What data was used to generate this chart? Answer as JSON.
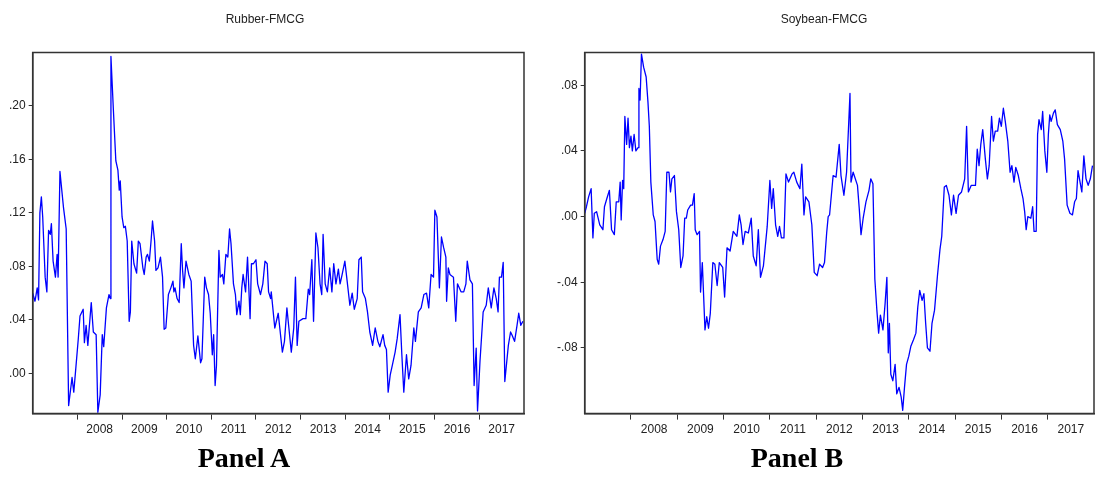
{
  "chart_data": [
    {
      "type": "line",
      "title": "Rubber-FMCG",
      "annotations": [
        "Panel A"
      ],
      "legend": false,
      "marker": "none",
      "line_style": "solid",
      "xlim": [
        "2007-01-01",
        "2018-01-01"
      ],
      "xticks": [
        {
          "value": "2008-01-01",
          "label": null
        },
        {
          "value": "2008-07-02",
          "label": "2008"
        },
        {
          "value": "2009-01-01",
          "label": null
        },
        {
          "value": "2009-07-02",
          "label": "2009"
        },
        {
          "value": "2010-01-01",
          "label": null
        },
        {
          "value": "2010-07-02",
          "label": "2010"
        },
        {
          "value": "2011-01-01",
          "label": null
        },
        {
          "value": "2011-07-02",
          "label": "2011"
        },
        {
          "value": "2012-01-01",
          "label": null
        },
        {
          "value": "2012-07-02",
          "label": "2012"
        },
        {
          "value": "2013-01-01",
          "label": null
        },
        {
          "value": "2013-07-02",
          "label": "2013"
        },
        {
          "value": "2014-01-01",
          "label": null
        },
        {
          "value": "2014-07-02",
          "label": "2014"
        },
        {
          "value": "2015-01-01",
          "label": null
        },
        {
          "value": "2015-07-02",
          "label": "2015"
        },
        {
          "value": "2016-01-01",
          "label": null
        },
        {
          "value": "2016-07-02",
          "label": "2016"
        },
        {
          "value": "2017-01-01",
          "label": null
        },
        {
          "value": "2017-07-02",
          "label": "2017"
        }
      ],
      "ylim": [
        -0.03,
        0.24
      ],
      "yticks": [
        {
          "value": 0,
          "label": ".00"
        },
        {
          "value": 0.04,
          "label": ".04"
        },
        {
          "value": 0.08,
          "label": ".08"
        },
        {
          "value": 0.12,
          "label": ".12"
        },
        {
          "value": 0.16,
          "label": ".16"
        },
        {
          "value": 0.2,
          "label": ".20"
        }
      ],
      "series": [
        {
          "color": "#0000ff",
          "x": [
            "2007-01-01",
            "2007-01-20",
            "2007-02-07",
            "2007-02-18",
            "2007-03-01",
            "2007-03-13",
            "2007-03-24",
            "2007-04-13",
            "2007-04-27",
            "2007-05-11",
            "2007-05-25",
            "2007-06-03",
            "2007-06-17",
            "2007-07-06",
            "2007-07-20",
            "2007-07-28",
            "2007-08-12",
            "2007-09-10",
            "2007-10-02",
            "2007-10-22",
            "2007-11-19",
            "2007-12-03",
            "2007-12-17",
            "2008-01-09",
            "2008-01-23",
            "2008-02-18",
            "2008-02-28",
            "2008-03-13",
            "2008-03-27",
            "2008-04-24",
            "2008-05-11",
            "2008-06-03",
            "2008-06-17",
            "2008-07-06",
            "2008-07-23",
            "2008-08-04",
            "2008-08-26",
            "2008-09-16",
            "2008-09-27",
            "2008-10-02",
            "2008-10-22",
            "2008-11-11",
            "2008-11-28",
            "2008-12-09",
            "2008-12-17",
            "2009-01-01",
            "2009-01-15",
            "2009-01-28",
            "2009-02-12",
            "2009-02-28",
            "2009-03-10",
            "2009-03-21",
            "2009-04-08",
            "2009-04-30",
            "2009-05-14",
            "2009-05-28",
            "2009-06-20",
            "2009-07-01",
            "2009-07-17",
            "2009-07-28",
            "2009-08-12",
            "2009-08-26",
            "2009-09-07",
            "2009-09-24",
            "2009-10-05",
            "2009-10-22",
            "2009-11-11",
            "2009-11-28",
            "2009-12-11",
            "2009-12-25",
            "2010-01-15",
            "2010-02-04",
            "2010-02-21",
            "2010-03-01",
            "2010-03-10",
            "2010-03-27",
            "2010-04-13",
            "2010-04-30",
            "2010-05-11",
            "2010-05-22",
            "2010-06-08",
            "2010-07-01",
            "2010-07-20",
            "2010-08-09",
            "2010-08-23",
            "2010-09-13",
            "2010-10-05",
            "2010-10-16",
            "2010-11-08",
            "2010-11-22",
            "2010-12-09",
            "2010-12-23",
            "2011-01-09",
            "2011-01-20",
            "2011-02-01",
            "2011-02-12",
            "2011-03-04",
            "2011-03-15",
            "2011-04-02",
            "2011-04-13",
            "2011-04-30",
            "2011-05-16",
            "2011-05-30",
            "2011-06-11",
            "2011-07-01",
            "2011-07-17",
            "2011-07-28",
            "2011-08-15",
            "2011-08-26",
            "2011-09-07",
            "2011-09-18",
            "2011-10-08",
            "2011-10-24",
            "2011-11-14",
            "2011-11-25",
            "2011-12-11",
            "2012-01-01",
            "2012-01-15",
            "2012-02-07",
            "2012-02-26",
            "2012-03-15",
            "2012-04-02",
            "2012-04-13",
            "2012-04-30",
            "2012-05-05",
            "2012-06-03",
            "2012-07-01",
            "2012-08-04",
            "2012-08-21",
            "2012-09-10",
            "2012-09-24",
            "2012-10-16",
            "2012-11-05",
            "2012-11-19",
            "2012-12-03",
            "2012-12-17",
            "2013-01-20",
            "2013-02-12",
            "2013-03-04",
            "2013-03-15",
            "2013-04-02",
            "2013-04-16",
            "2013-05-05",
            "2013-05-22",
            "2013-06-08",
            "2013-06-22",
            "2013-07-03",
            "2013-07-20",
            "2013-08-07",
            "2013-08-26",
            "2013-09-13",
            "2013-09-28",
            "2013-10-16",
            "2013-11-05",
            "2013-11-19",
            "2013-12-06",
            "2013-12-28",
            "2014-01-12",
            "2014-02-07",
            "2014-02-26",
            "2014-03-15",
            "2014-04-08",
            "2014-04-22",
            "2014-05-11",
            "2014-05-22",
            "2014-06-14",
            "2014-07-01",
            "2014-07-20",
            "2014-08-12",
            "2014-09-02",
            "2014-09-24",
            "2014-10-10",
            "2014-11-05",
            "2014-11-19",
            "2014-12-03",
            "2014-12-17",
            "2015-01-03",
            "2015-01-20",
            "2015-02-12",
            "2015-03-01",
            "2015-03-24",
            "2015-04-08",
            "2015-04-24",
            "2015-05-16",
            "2015-06-03",
            "2015-06-22",
            "2015-07-15",
            "2015-07-28",
            "2015-08-21",
            "2015-09-13",
            "2015-10-05",
            "2015-10-27",
            "2015-11-14",
            "2015-12-03",
            "2015-12-23",
            "2016-01-03",
            "2016-01-20",
            "2016-02-09",
            "2016-02-26",
            "2016-03-15",
            "2016-04-02",
            "2016-04-08",
            "2016-04-22",
            "2016-05-05",
            "2016-06-03",
            "2016-06-22",
            "2016-07-06",
            "2016-08-04",
            "2016-08-26",
            "2016-09-13",
            "2016-09-24",
            "2016-10-16",
            "2016-11-05",
            "2016-11-19",
            "2016-12-06",
            "2016-12-17",
            "2017-01-06",
            "2017-02-01",
            "2017-02-26",
            "2017-03-15",
            "2017-04-08",
            "2017-04-30",
            "2017-05-19",
            "2017-06-03",
            "2017-06-14",
            "2017-07-01",
            "2017-07-15",
            "2017-07-28",
            "2017-08-26",
            "2017-09-13",
            "2017-09-24",
            "2017-10-16",
            "2017-11-05",
            "2017-11-19",
            "2017-12-06",
            "2017-12-23"
          ],
          "values": [
            0.06,
            0.054,
            0.064,
            0.055,
            0.12,
            0.132,
            0.117,
            0.072,
            0.061,
            0.107,
            0.104,
            0.112,
            0.084,
            0.072,
            0.089,
            0.072,
            0.151,
            0.124,
            0.108,
            -0.024,
            -0.003,
            -0.014,
            0.001,
            0.026,
            0.043,
            0.048,
            0.023,
            0.036,
            0.021,
            0.053,
            0.031,
            0.029,
            -0.029,
            -0.016,
            0.029,
            0.02,
            0.049,
            0.059,
            0.056,
            0.237,
            0.197,
            0.159,
            0.152,
            0.137,
            0.144,
            0.117,
            0.109,
            0.11,
            0.099,
            0.039,
            0.046,
            0.099,
            0.082,
            0.075,
            0.099,
            0.097,
            0.079,
            0.074,
            0.087,
            0.089,
            0.084,
            0.099,
            0.114,
            0.099,
            0.077,
            0.079,
            0.087,
            0.072,
            0.033,
            0.034,
            0.059,
            0.064,
            0.069,
            0.061,
            0.064,
            0.056,
            0.053,
            0.097,
            0.077,
            0.064,
            0.084,
            0.074,
            0.069,
            0.021,
            0.011,
            0.028,
            0.008,
            0.011,
            0.072,
            0.064,
            0.059,
            0.045,
            0.014,
            0.029,
            -0.009,
            0.006,
            0.092,
            0.072,
            0.074,
            0.067,
            0.089,
            0.087,
            0.108,
            0.097,
            0.067,
            0.059,
            0.044,
            0.054,
            0.044,
            0.064,
            0.074,
            0.061,
            0.087,
            0.041,
            0.082,
            0.082,
            0.085,
            0.067,
            0.059,
            0.067,
            0.084,
            0.082,
            0.061,
            0.056,
            0.061,
            0.034,
            0.045,
            0.016,
            0.024,
            0.049,
            0.036,
            0.016,
            0.034,
            0.072,
            0.021,
            0.039,
            0.041,
            0.041,
            0.063,
            0.059,
            0.085,
            0.039,
            0.105,
            0.094,
            0.067,
            0.059,
            0.104,
            0.067,
            0.061,
            0.079,
            0.061,
            0.082,
            0.067,
            0.078,
            0.067,
            0.074,
            0.084,
            0.072,
            0.051,
            0.06,
            0.048,
            0.056,
            0.085,
            0.087,
            0.061,
            0.056,
            0.046,
            0.031,
            0.021,
            0.034,
            0.024,
            0.02,
            0.029,
            0.021,
            0.018,
            -0.014,
            -0.001,
            0.006,
            0.016,
            0.026,
            0.044,
            0.014,
            -0.014,
            0.014,
            -0.004,
            0.006,
            0.034,
            0.024,
            0.046,
            0.049,
            0.059,
            0.06,
            0.049,
            0.074,
            0.072,
            0.122,
            0.117,
            0.064,
            0.102,
            0.094,
            0.087,
            0.054,
            0.079,
            0.074,
            0.072,
            0.039,
            0.067,
            0.061,
            0.061,
            0.067,
            0.084,
            0.07,
            0.067,
            -0.009,
            0.019,
            -0.028,
            0.009,
            0.046,
            0.051,
            0.064,
            0.049,
            0.064,
            0.056,
            0.046,
            0.072,
            0.072,
            0.083,
            -0.006,
            0.021,
            0.031,
            0.029,
            0.024,
            0.036,
            0.045,
            0.036,
            0.039
          ]
        }
      ]
    },
    {
      "type": "line",
      "title": "Soybean-FMCG",
      "annotations": [
        "Panel B"
      ],
      "legend": false,
      "marker": "none",
      "line_style": "solid",
      "xlim": [
        "2007-01-01",
        "2018-01-01"
      ],
      "xticks": [
        {
          "value": "2008-01-01",
          "label": null
        },
        {
          "value": "2008-07-02",
          "label": "2008"
        },
        {
          "value": "2009-01-01",
          "label": null
        },
        {
          "value": "2009-07-02",
          "label": "2009"
        },
        {
          "value": "2010-01-01",
          "label": null
        },
        {
          "value": "2010-07-02",
          "label": "2010"
        },
        {
          "value": "2011-01-01",
          "label": null
        },
        {
          "value": "2011-07-02",
          "label": "2011"
        },
        {
          "value": "2012-01-01",
          "label": null
        },
        {
          "value": "2012-07-02",
          "label": "2012"
        },
        {
          "value": "2013-01-01",
          "label": null
        },
        {
          "value": "2013-07-02",
          "label": "2013"
        },
        {
          "value": "2014-01-01",
          "label": null
        },
        {
          "value": "2014-07-02",
          "label": "2014"
        },
        {
          "value": "2015-01-01",
          "label": null
        },
        {
          "value": "2015-07-02",
          "label": "2015"
        },
        {
          "value": "2016-01-01",
          "label": null
        },
        {
          "value": "2016-07-02",
          "label": "2016"
        },
        {
          "value": "2017-01-01",
          "label": null
        },
        {
          "value": "2017-07-02",
          "label": "2017"
        }
      ],
      "ylim": [
        -0.12,
        0.1
      ],
      "yticks": [
        {
          "value": -0.08,
          "label": "-.08"
        },
        {
          "value": -0.04,
          "label": "-.04"
        },
        {
          "value": 0,
          "label": ".00"
        },
        {
          "value": 0.04,
          "label": ".04"
        },
        {
          "value": 0.08,
          "label": ".08"
        }
      ],
      "series": [
        {
          "color": "#0000ff",
          "x": [
            "2007-01-01",
            "2007-01-15",
            "2007-02-01",
            "2007-02-21",
            "2007-03-07",
            "2007-03-18",
            "2007-04-05",
            "2007-04-30",
            "2007-05-25",
            "2007-06-06",
            "2007-06-25",
            "2007-07-15",
            "2007-08-01",
            "2007-08-23",
            "2007-09-07",
            "2007-09-27",
            "2007-10-08",
            "2007-10-16",
            "2007-10-27",
            "2007-11-05",
            "2007-11-14",
            "2007-11-28",
            "2007-12-09",
            "2007-12-20",
            "2008-01-01",
            "2008-01-12",
            "2008-01-26",
            "2008-02-09",
            "2008-02-26",
            "2008-03-04",
            "2008-03-13",
            "2008-03-24",
            "2008-04-10",
            "2008-04-30",
            "2008-05-14",
            "2008-05-25",
            "2008-06-06",
            "2008-06-25",
            "2008-07-09",
            "2008-07-26",
            "2008-08-07",
            "2008-08-21",
            "2008-09-10",
            "2008-09-27",
            "2008-10-10",
            "2008-10-27",
            "2008-11-08",
            "2008-11-19",
            "2008-12-09",
            "2008-12-25",
            "2009-01-12",
            "2009-01-28",
            "2009-02-15",
            "2009-02-28",
            "2009-03-13",
            "2009-03-24",
            "2009-04-16",
            "2009-04-30",
            "2009-05-14",
            "2009-05-22",
            "2009-06-06",
            "2009-06-25",
            "2009-07-03",
            "2009-07-17",
            "2009-08-07",
            "2009-08-21",
            "2009-09-04",
            "2009-09-18",
            "2009-10-08",
            "2009-10-24",
            "2009-11-11",
            "2009-11-28",
            "2009-12-25",
            "2010-01-09",
            "2010-01-28",
            "2010-02-21",
            "2010-03-18",
            "2010-04-16",
            "2010-05-05",
            "2010-05-19",
            "2010-06-03",
            "2010-06-20",
            "2010-07-15",
            "2010-08-07",
            "2010-08-23",
            "2010-09-15",
            "2010-10-02",
            "2010-10-19",
            "2010-11-11",
            "2010-12-11",
            "2011-01-01",
            "2011-01-15",
            "2011-01-28",
            "2011-02-15",
            "2011-03-04",
            "2011-03-18",
            "2011-04-02",
            "2011-04-22",
            "2011-05-08",
            "2011-05-28",
            "2011-06-25",
            "2011-07-09",
            "2011-08-01",
            "2011-08-26",
            "2011-09-10",
            "2011-09-27",
            "2011-10-10",
            "2011-11-05",
            "2011-11-28",
            "2011-12-17",
            "2012-01-09",
            "2012-01-28",
            "2012-02-21",
            "2012-03-07",
            "2012-03-24",
            "2012-04-05",
            "2012-04-16",
            "2012-05-14",
            "2012-06-06",
            "2012-07-01",
            "2012-07-15",
            "2012-08-07",
            "2012-08-28",
            "2012-09-24",
            "2012-10-02",
            "2012-10-19",
            "2012-11-22",
            "2012-12-06",
            "2012-12-20",
            "2013-01-06",
            "2013-01-28",
            "2013-02-21",
            "2013-03-07",
            "2013-03-24",
            "2013-04-08",
            "2013-04-24",
            "2013-05-08",
            "2013-05-22",
            "2013-06-11",
            "2013-06-28",
            "2013-07-12",
            "2013-07-23",
            "2013-08-01",
            "2013-08-12",
            "2013-08-28",
            "2013-09-15",
            "2013-09-28",
            "2013-10-16",
            "2013-11-02",
            "2013-11-14",
            "2013-11-28",
            "2013-12-14",
            "2014-01-01",
            "2014-01-17",
            "2014-02-07",
            "2014-02-26",
            "2014-03-13",
            "2014-03-28",
            "2014-04-16",
            "2014-04-30",
            "2014-05-14",
            "2014-05-28",
            "2014-06-17",
            "2014-07-03",
            "2014-07-23",
            "2014-08-15",
            "2014-09-04",
            "2014-09-18",
            "2014-10-08",
            "2014-10-24",
            "2014-11-14",
            "2014-12-03",
            "2014-12-20",
            "2015-01-09",
            "2015-01-28",
            "2015-02-21",
            "2015-03-18",
            "2015-04-02",
            "2015-04-16",
            "2015-05-08",
            "2015-06-11",
            "2015-06-25",
            "2015-07-09",
            "2015-07-23",
            "2015-08-07",
            "2015-08-28",
            "2015-09-13",
            "2015-09-27",
            "2015-10-16",
            "2015-10-30",
            "2015-11-14",
            "2015-12-03",
            "2015-12-17",
            "2016-01-01",
            "2016-01-17",
            "2016-02-01",
            "2016-02-21",
            "2016-03-10",
            "2016-03-24",
            "2016-04-10",
            "2016-04-24",
            "2016-05-14",
            "2016-06-03",
            "2016-06-20",
            "2016-07-03",
            "2016-07-15",
            "2016-07-28",
            "2016-08-21",
            "2016-09-04",
            "2016-09-15",
            "2016-10-02",
            "2016-10-13",
            "2016-10-24",
            "2016-11-11",
            "2016-11-22",
            "2016-12-09",
            "2016-12-25",
            "2017-01-06",
            "2017-01-17",
            "2017-01-28",
            "2017-02-15",
            "2017-03-01",
            "2017-03-18",
            "2017-04-10",
            "2017-04-30",
            "2017-05-14",
            "2017-06-03",
            "2017-06-25",
            "2017-07-15",
            "2017-08-01",
            "2017-08-15",
            "2017-08-28",
            "2017-09-13",
            "2017-09-27",
            "2017-10-13",
            "2017-10-30",
            "2017-11-16",
            "2017-12-03",
            "2017-12-20"
          ],
          "values": [
            0.002,
            0.006,
            0.012,
            0.017,
            -0.013,
            0.002,
            0.003,
            -0.005,
            -0.008,
            0.006,
            0.011,
            0.016,
            -0.008,
            -0.011,
            0.009,
            0.009,
            0.021,
            -0.002,
            0.022,
            0.017,
            0.061,
            0.044,
            0.06,
            0.042,
            0.049,
            0.04,
            0.05,
            0.04,
            0.042,
            0.078,
            0.071,
            0.099,
            0.091,
            0.085,
            0.07,
            0.055,
            0.021,
            0.001,
            -0.003,
            -0.026,
            -0.029,
            -0.018,
            -0.014,
            -0.009,
            0.027,
            0.027,
            0.015,
            0.023,
            0.025,
            0.003,
            -0.008,
            -0.031,
            -0.024,
            -0.001,
            -0.001,
            0.004,
            0.007,
            0.007,
            0.014,
            -0.008,
            -0.011,
            -0.009,
            -0.046,
            -0.028,
            -0.069,
            -0.061,
            -0.068,
            -0.059,
            -0.028,
            -0.029,
            -0.042,
            -0.028,
            -0.031,
            -0.049,
            -0.019,
            -0.021,
            -0.009,
            -0.012,
            0.001,
            -0.005,
            -0.017,
            -0.009,
            -0.01,
            -0.001,
            -0.024,
            -0.03,
            -0.008,
            -0.037,
            -0.03,
            -0.006,
            0.022,
            0.005,
            0.017,
            -0.005,
            -0.012,
            -0.006,
            -0.013,
            -0.013,
            0.026,
            0.021,
            0.026,
            0.027,
            0.021,
            0.017,
            0.032,
            0.001,
            0.012,
            0.009,
            -0.005,
            -0.034,
            -0.036,
            -0.029,
            -0.031,
            -0.028,
            -0.01,
            0.0,
            0.001,
            0.025,
            0.024,
            0.044,
            0.025,
            0.013,
            0.027,
            0.075,
            0.021,
            0.027,
            0.019,
            0.005,
            -0.011,
            -0.001,
            0.009,
            0.016,
            0.023,
            0.02,
            -0.038,
            -0.057,
            -0.071,
            -0.06,
            -0.069,
            -0.053,
            -0.037,
            -0.083,
            -0.065,
            -0.096,
            -0.1,
            -0.09,
            -0.108,
            -0.104,
            -0.11,
            -0.118,
            -0.104,
            -0.09,
            -0.085,
            -0.079,
            -0.075,
            -0.071,
            -0.055,
            -0.045,
            -0.051,
            -0.047,
            -0.065,
            -0.08,
            -0.082,
            -0.065,
            -0.057,
            -0.036,
            -0.02,
            -0.012,
            0.018,
            0.019,
            0.013,
            0.001,
            0.013,
            0.002,
            0.013,
            0.015,
            0.023,
            0.055,
            0.015,
            0.019,
            0.019,
            0.041,
            0.031,
            0.044,
            0.053,
            0.035,
            0.023,
            0.031,
            0.061,
            0.046,
            0.052,
            0.052,
            0.06,
            0.055,
            0.066,
            0.058,
            0.046,
            0.027,
            0.031,
            0.021,
            0.03,
            0.025,
            0.017,
            0.011,
            0.003,
            -0.008,
            0.0,
            -0.001,
            0.006,
            -0.009,
            -0.009,
            0.05,
            0.059,
            0.053,
            0.064,
            0.04,
            0.027,
            0.05,
            0.062,
            0.058,
            0.063,
            0.065,
            0.056,
            0.053,
            0.046,
            0.035,
            0.007,
            0.002,
            0.001,
            0.009,
            0.011,
            0.028,
            0.021,
            0.015,
            0.037,
            0.023,
            0.019,
            0.023,
            0.031
          ]
        }
      ]
    }
  ]
}
